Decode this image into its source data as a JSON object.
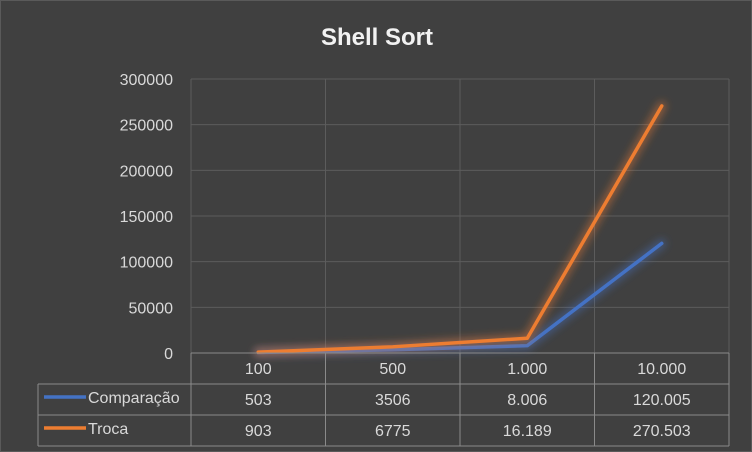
{
  "chart_data": {
    "type": "line",
    "title": "Shell Sort",
    "categories": [
      "100",
      "500",
      "1.000",
      "10.000"
    ],
    "y_ticks": [
      "0",
      "50000",
      "100000",
      "150000",
      "200000",
      "250000",
      "300000"
    ],
    "ylim": [
      0,
      300000
    ],
    "grid": true,
    "legend": "data-table-below",
    "series": [
      {
        "name": "Comparação",
        "color": "#4472c4",
        "values": [
          503,
          3506,
          8006,
          120005
        ],
        "labels": [
          "503",
          "3506",
          "8.006",
          "120.005"
        ]
      },
      {
        "name": "Troca",
        "color": "#ed7d31",
        "values": [
          903,
          6775,
          16189,
          270503
        ],
        "labels": [
          "903",
          "6775",
          "16.189",
          "270.503"
        ]
      }
    ]
  }
}
